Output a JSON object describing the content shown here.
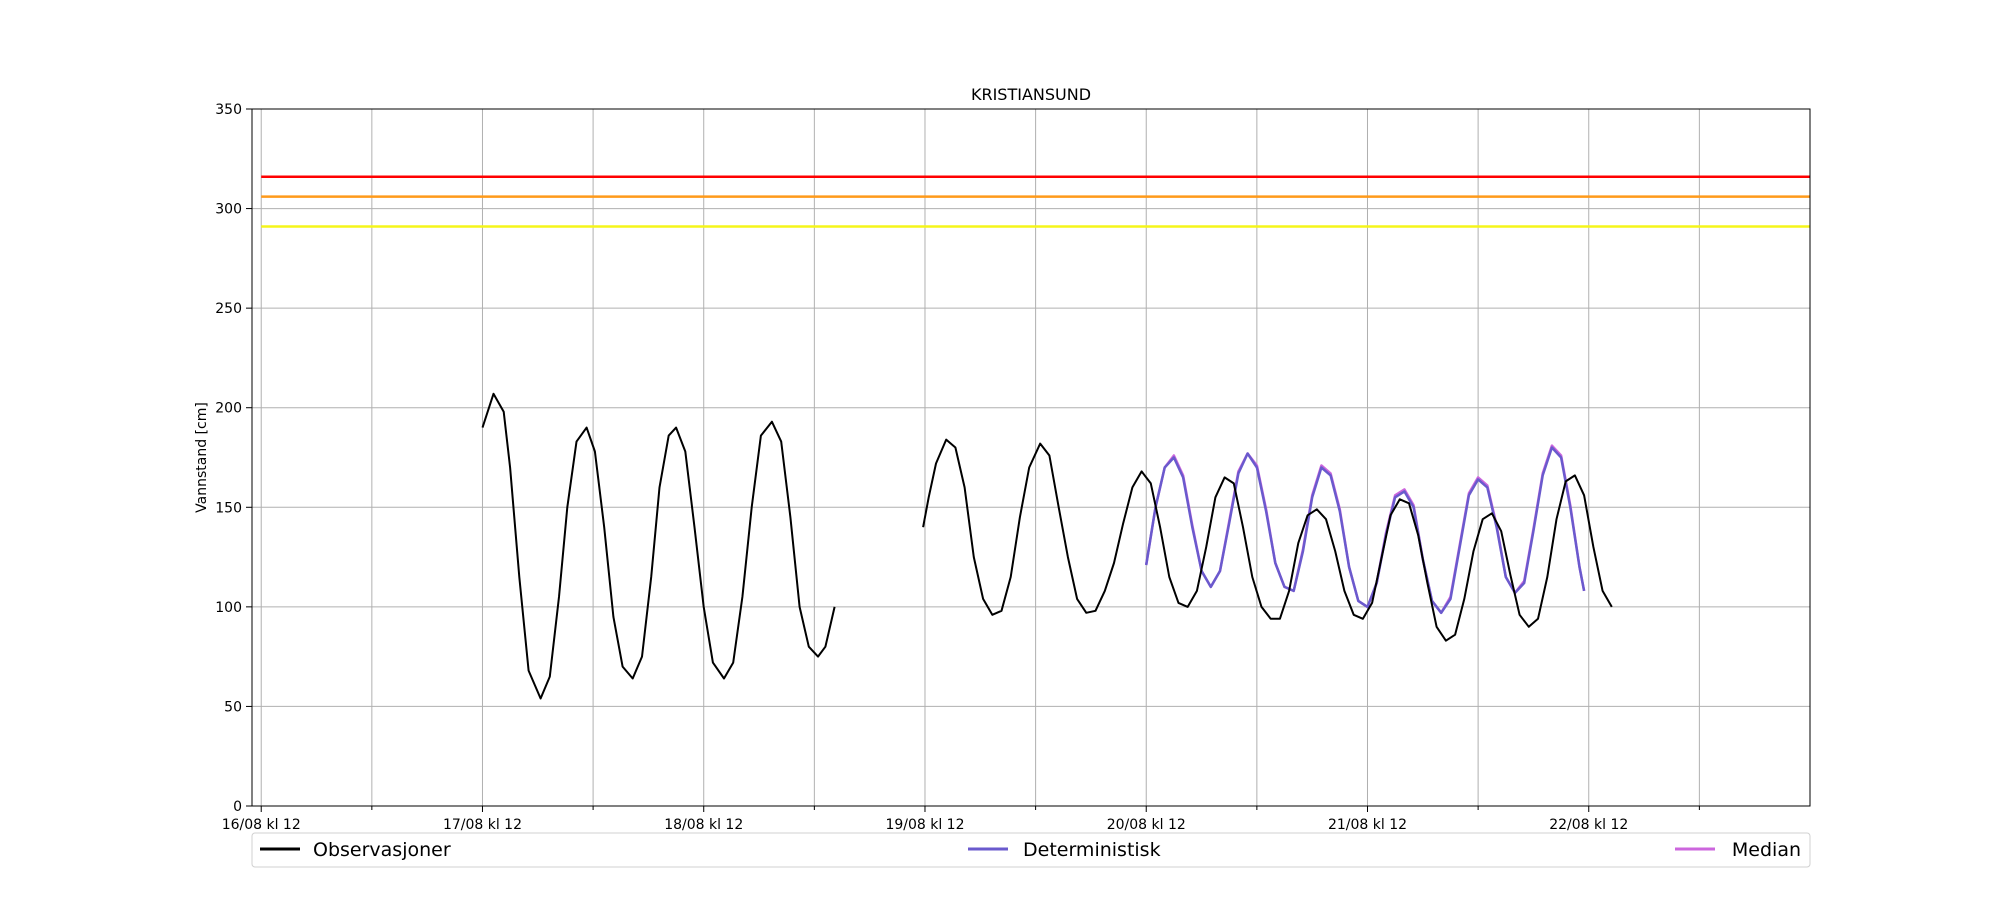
{
  "chart_data": {
    "type": "line",
    "title": "KRISTIANSUND",
    "xlabel": "",
    "ylabel": "Vannstand [cm]",
    "x_unit": "hours since 16/08 kl 12",
    "xlim": [
      -1,
      168
    ],
    "ylim": [
      0,
      350
    ],
    "y_ticks": [
      0,
      50,
      100,
      150,
      200,
      250,
      300,
      350
    ],
    "x_ticks": [
      {
        "x": 0,
        "label": "16/08 kl 12"
      },
      {
        "x": 24,
        "label": "17/08 kl 12"
      },
      {
        "x": 48,
        "label": "18/08 kl 12"
      },
      {
        "x": 72,
        "label": "19/08 kl 12"
      },
      {
        "x": 96,
        "label": "20/08 kl 12"
      },
      {
        "x": 120,
        "label": "21/08 kl 12"
      },
      {
        "x": 144,
        "label": "22/08 kl 12"
      }
    ],
    "x_minor_ticks": [
      12,
      36,
      60,
      84,
      108,
      132,
      156
    ],
    "grid": true,
    "thresholds": [
      {
        "value": 316,
        "color": "#ff0000"
      },
      {
        "value": 306,
        "color": "#ff9a1a"
      },
      {
        "value": 291,
        "color": "#f5f51a"
      }
    ],
    "legend_placement": "bottom",
    "series": [
      {
        "name": "Observasjoner",
        "color": "#000000",
        "points": [
          [
            24.0,
            190
          ],
          [
            25.2,
            207
          ],
          [
            26.3,
            198
          ],
          [
            27.0,
            170
          ],
          [
            28.0,
            115
          ],
          [
            29.0,
            68
          ],
          [
            30.3,
            54
          ],
          [
            31.3,
            65
          ],
          [
            32.3,
            105
          ],
          [
            33.2,
            150
          ],
          [
            34.2,
            183
          ],
          [
            35.3,
            190
          ],
          [
            36.2,
            178
          ],
          [
            37.2,
            140
          ],
          [
            38.2,
            95
          ],
          [
            39.2,
            70
          ],
          [
            40.3,
            64
          ],
          [
            41.3,
            75
          ],
          [
            42.3,
            115
          ],
          [
            43.2,
            160
          ],
          [
            44.2,
            186
          ],
          [
            45.0,
            190
          ],
          [
            46.0,
            178
          ],
          [
            47.0,
            140
          ],
          [
            48.0,
            100
          ],
          [
            49.0,
            72
          ],
          [
            50.2,
            64
          ],
          [
            51.2,
            72
          ],
          [
            52.2,
            105
          ],
          [
            53.2,
            150
          ],
          [
            54.2,
            186
          ],
          [
            55.4,
            193
          ],
          [
            56.4,
            183
          ],
          [
            57.4,
            145
          ],
          [
            58.4,
            100
          ],
          [
            59.4,
            80
          ],
          [
            60.4,
            75
          ],
          [
            61.2,
            80
          ],
          [
            62.2,
            100
          ],
          [
            71.8,
            140
          ],
          [
            72.4,
            155
          ],
          [
            73.2,
            172
          ],
          [
            74.3,
            184
          ],
          [
            75.3,
            180
          ],
          [
            76.3,
            160
          ],
          [
            77.3,
            125
          ],
          [
            78.3,
            104
          ],
          [
            79.3,
            96
          ],
          [
            80.3,
            98
          ],
          [
            81.3,
            115
          ],
          [
            82.3,
            145
          ],
          [
            83.3,
            170
          ],
          [
            84.5,
            182
          ],
          [
            85.5,
            176
          ],
          [
            86.5,
            150
          ],
          [
            87.5,
            125
          ],
          [
            88.5,
            104
          ],
          [
            89.5,
            97
          ],
          [
            90.5,
            98
          ],
          [
            91.5,
            108
          ],
          [
            92.5,
            122
          ],
          [
            93.5,
            142
          ],
          [
            94.5,
            160
          ],
          [
            95.5,
            168
          ],
          [
            96.5,
            162
          ],
          [
            97.5,
            140
          ],
          [
            98.5,
            115
          ],
          [
            99.5,
            102
          ],
          [
            100.5,
            100
          ],
          [
            101.5,
            108
          ],
          [
            102.5,
            130
          ],
          [
            103.5,
            155
          ],
          [
            104.5,
            165
          ],
          [
            105.5,
            162
          ],
          [
            106.5,
            140
          ],
          [
            107.5,
            115
          ],
          [
            108.5,
            100
          ],
          [
            109.5,
            94
          ],
          [
            110.5,
            94
          ],
          [
            111.5,
            108
          ],
          [
            112.5,
            132
          ],
          [
            113.5,
            146
          ],
          [
            114.5,
            149
          ],
          [
            115.5,
            144
          ],
          [
            116.5,
            128
          ],
          [
            117.5,
            108
          ],
          [
            118.5,
            96
          ],
          [
            119.5,
            94
          ],
          [
            120.5,
            102
          ],
          [
            121.5,
            124
          ],
          [
            122.5,
            146
          ],
          [
            123.5,
            154
          ],
          [
            124.5,
            152
          ],
          [
            125.5,
            136
          ],
          [
            126.5,
            112
          ],
          [
            127.5,
            90
          ],
          [
            128.5,
            83
          ],
          [
            129.5,
            86
          ],
          [
            130.5,
            104
          ],
          [
            131.5,
            128
          ],
          [
            132.5,
            144
          ],
          [
            133.5,
            147
          ],
          [
            134.5,
            138
          ],
          [
            135.5,
            116
          ],
          [
            136.5,
            96
          ],
          [
            137.5,
            90
          ],
          [
            138.5,
            94
          ],
          [
            139.5,
            115
          ],
          [
            140.5,
            144
          ],
          [
            141.5,
            163
          ],
          [
            142.5,
            166
          ],
          [
            143.5,
            156
          ],
          [
            144.5,
            130
          ],
          [
            145.5,
            108
          ],
          [
            146.5,
            100
          ]
        ]
      },
      {
        "name": "Deterministisk",
        "color": "#6a5acd",
        "points": [
          [
            96.0,
            121
          ],
          [
            97.0,
            150
          ],
          [
            98.0,
            170
          ],
          [
            99.0,
            175
          ],
          [
            100.0,
            165
          ],
          [
            101.0,
            140
          ],
          [
            102.0,
            118
          ],
          [
            103.0,
            110
          ],
          [
            104.0,
            118
          ],
          [
            105.0,
            142
          ],
          [
            106.0,
            167
          ],
          [
            107.0,
            177
          ],
          [
            108.0,
            170
          ],
          [
            109.0,
            148
          ],
          [
            110.0,
            122
          ],
          [
            111.0,
            110
          ],
          [
            112.0,
            108
          ],
          [
            113.0,
            128
          ],
          [
            114.0,
            155
          ],
          [
            115.0,
            170
          ],
          [
            116.0,
            166
          ],
          [
            117.0,
            148
          ],
          [
            118.0,
            120
          ],
          [
            119.0,
            103
          ],
          [
            120.0,
            100
          ],
          [
            121.0,
            112
          ],
          [
            122.0,
            136
          ],
          [
            123.0,
            155
          ],
          [
            124.0,
            158
          ],
          [
            125.0,
            150
          ],
          [
            126.0,
            124
          ],
          [
            127.0,
            103
          ],
          [
            128.0,
            97
          ],
          [
            129.0,
            104
          ],
          [
            130.0,
            130
          ],
          [
            131.0,
            156
          ],
          [
            132.0,
            164
          ],
          [
            133.0,
            160
          ],
          [
            134.0,
            140
          ],
          [
            135.0,
            115
          ],
          [
            136.0,
            107
          ],
          [
            137.0,
            112
          ],
          [
            138.0,
            138
          ],
          [
            139.0,
            166
          ],
          [
            140.0,
            180
          ],
          [
            141.0,
            175
          ],
          [
            142.0,
            150
          ],
          [
            143.0,
            120
          ],
          [
            143.5,
            108
          ]
        ]
      },
      {
        "name": "Median",
        "color": "#cc66dd",
        "points": [
          [
            96.0,
            121
          ],
          [
            97.0,
            150
          ],
          [
            98.0,
            170
          ],
          [
            99.0,
            176
          ],
          [
            100.0,
            166
          ],
          [
            101.0,
            141
          ],
          [
            102.0,
            118
          ],
          [
            103.0,
            110
          ],
          [
            104.0,
            118
          ],
          [
            105.0,
            143
          ],
          [
            106.0,
            168
          ],
          [
            107.0,
            177
          ],
          [
            108.0,
            171
          ],
          [
            109.0,
            149
          ],
          [
            110.0,
            122
          ],
          [
            111.0,
            110
          ],
          [
            112.0,
            108
          ],
          [
            113.0,
            129
          ],
          [
            114.0,
            156
          ],
          [
            115.0,
            171
          ],
          [
            116.0,
            167
          ],
          [
            117.0,
            149
          ],
          [
            118.0,
            120
          ],
          [
            119.0,
            103
          ],
          [
            120.0,
            100
          ],
          [
            121.0,
            112
          ],
          [
            122.0,
            137
          ],
          [
            123.0,
            156
          ],
          [
            124.0,
            159
          ],
          [
            125.0,
            151
          ],
          [
            126.0,
            124
          ],
          [
            127.0,
            103
          ],
          [
            128.0,
            97
          ],
          [
            129.0,
            105
          ],
          [
            130.0,
            131
          ],
          [
            131.0,
            157
          ],
          [
            132.0,
            165
          ],
          [
            133.0,
            161
          ],
          [
            134.0,
            141
          ],
          [
            135.0,
            115
          ],
          [
            136.0,
            107
          ],
          [
            137.0,
            113
          ],
          [
            138.0,
            139
          ],
          [
            139.0,
            167
          ],
          [
            140.0,
            181
          ],
          [
            141.0,
            176
          ],
          [
            142.0,
            151
          ],
          [
            143.0,
            120
          ],
          [
            143.5,
            108
          ]
        ]
      }
    ]
  }
}
